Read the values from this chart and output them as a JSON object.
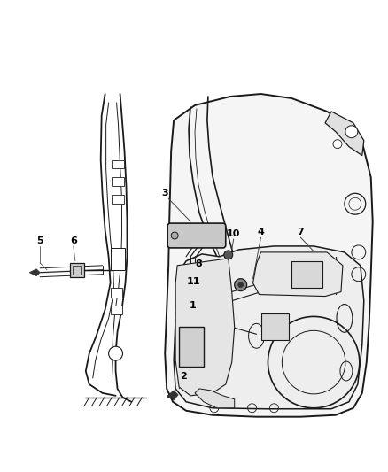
{
  "background_color": "#ffffff",
  "line_color": "#1a1a1a",
  "label_color": "#000000",
  "figure_width": 4.38,
  "figure_height": 5.33,
  "dpi": 100
}
